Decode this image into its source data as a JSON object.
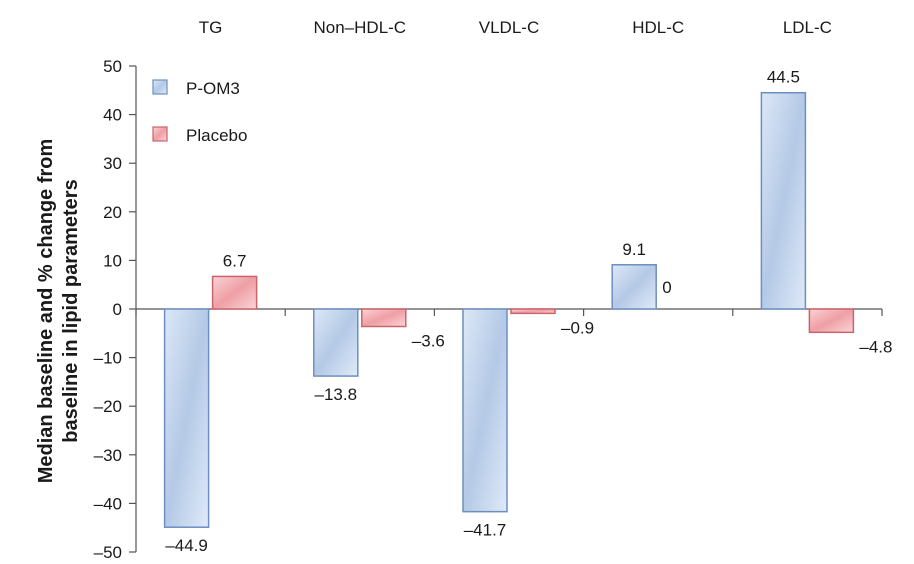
{
  "chart_data": {
    "type": "bar",
    "categories": [
      "TG",
      "Non–HDL-C",
      "VLDL-C",
      "HDL-C",
      "LDL-C"
    ],
    "series": [
      {
        "name": "P-OM3",
        "values": [
          -44.9,
          -13.8,
          -41.7,
          9.1,
          44.5
        ],
        "labels": [
          "–44.9",
          "–13.8",
          "–41.7",
          "9.1",
          "44.5"
        ],
        "color": "#b8cdea"
      },
      {
        "name": "Placebo",
        "values": [
          6.7,
          -3.6,
          -0.9,
          0,
          -4.8
        ],
        "labels": [
          "6.7",
          "–3.6",
          "–0.9",
          "0",
          "–4.8"
        ],
        "color": "#f2b6b9"
      }
    ],
    "ylabel_lines": [
      "Median  baseline and % change from",
      "baseline in lipid parameters"
    ],
    "ylim": [
      -50,
      50
    ],
    "yticks": [
      50,
      40,
      30,
      20,
      10,
      0,
      -10,
      -20,
      -30,
      -40,
      -50
    ],
    "ytick_labels": [
      "50",
      "40",
      "30",
      "20",
      "10",
      "0",
      "–10",
      "–20",
      "–30",
      "–40",
      "–50"
    ],
    "legend": "top-left, inside plot",
    "grid": false,
    "category_labels_position": "top"
  }
}
